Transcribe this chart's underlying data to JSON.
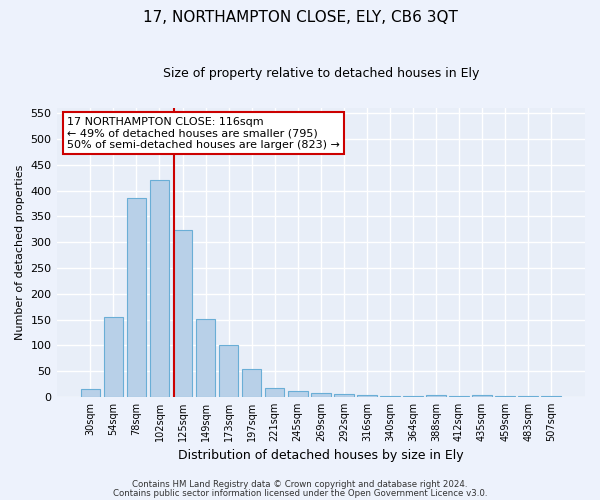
{
  "title1": "17, NORTHAMPTON CLOSE, ELY, CB6 3QT",
  "title2": "Size of property relative to detached houses in Ely",
  "xlabel": "Distribution of detached houses by size in Ely",
  "ylabel": "Number of detached properties",
  "bar_labels": [
    "30sqm",
    "54sqm",
    "78sqm",
    "102sqm",
    "125sqm",
    "149sqm",
    "173sqm",
    "197sqm",
    "221sqm",
    "245sqm",
    "269sqm",
    "292sqm",
    "316sqm",
    "340sqm",
    "364sqm",
    "388sqm",
    "412sqm",
    "435sqm",
    "459sqm",
    "483sqm",
    "507sqm"
  ],
  "bar_values": [
    15,
    155,
    385,
    420,
    323,
    152,
    100,
    55,
    18,
    12,
    8,
    5,
    3,
    2,
    1,
    4,
    1,
    4,
    1,
    1,
    2
  ],
  "bar_color": "#b8d0e8",
  "bar_edge_color": "#6aaed6",
  "background_color": "#e8eef8",
  "grid_color": "#ffffff",
  "red_line_x": 3.62,
  "annotation_line1": "17 NORTHAMPTON CLOSE: 116sqm",
  "annotation_line2": "← 49% of detached houses are smaller (795)",
  "annotation_line3": "50% of semi-detached houses are larger (823) →",
  "annotation_box_color": "#ffffff",
  "annotation_box_edge": "#cc0000",
  "footer1": "Contains HM Land Registry data © Crown copyright and database right 2024.",
  "footer2": "Contains public sector information licensed under the Open Government Licence v3.0.",
  "ylim": [
    0,
    560
  ],
  "yticks": [
    0,
    50,
    100,
    150,
    200,
    250,
    300,
    350,
    400,
    450,
    500,
    550
  ],
  "fig_bg": "#edf2fc"
}
